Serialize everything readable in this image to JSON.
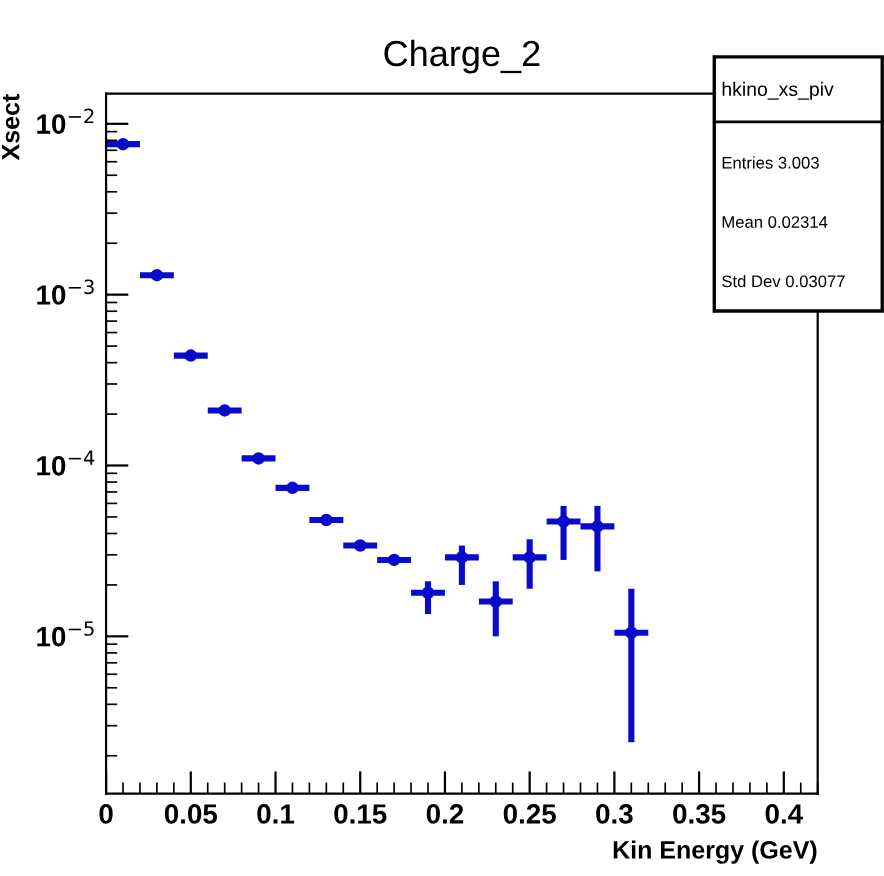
{
  "chart_data": {
    "type": "scatter",
    "title": "Charge_2",
    "xlabel": "Kin Energy (GeV)",
    "ylabel": "Xsect",
    "annotations": [
      "hkino_xs_piv",
      "Entries 3.003",
      "Mean 0.02314",
      "Std Dev 0.03077"
    ],
    "x": [
      0.01,
      0.03,
      0.05,
      0.07,
      0.09,
      0.11,
      0.13,
      0.15,
      0.17,
      0.19,
      0.21,
      0.23,
      0.25,
      0.27,
      0.29,
      0.31
    ],
    "series": [
      {
        "color": "#0a0acc",
        "values": [
          0.0076,
          0.0013,
          0.00044,
          0.00021,
          0.00011,
          7.4e-05,
          4.8e-05,
          3.4e-05,
          2.8e-05,
          1.8e-05,
          2.9e-05,
          1.6e-05,
          2.9e-05,
          4.7e-05,
          4.4e-05,
          1.05e-05
        ],
        "errors": [
          null,
          null,
          null,
          null,
          null,
          null,
          null,
          null,
          null,
          [
            1.35e-05,
            2.1e-05
          ],
          [
            2e-05,
            3.4e-05
          ],
          [
            1e-05,
            2.1e-05
          ],
          [
            1.9e-05,
            3.7e-05
          ],
          [
            2.8e-05,
            5.8e-05
          ],
          [
            2.4e-05,
            5.8e-05
          ],
          [
            2.4e-06,
            1.9e-05
          ]
        ],
        "xerrors": [
          0.01,
          0.01,
          0.01,
          0.01,
          0.01,
          0.01,
          0.01,
          0.01,
          0.01,
          0.01,
          0.01,
          0.01,
          0.01,
          0.01,
          0.01,
          0.01
        ]
      }
    ],
    "marker": "circle",
    "log": "y",
    "grid": false,
    "legend": false,
    "xlim": [
      0,
      0.42
    ],
    "ylim": [
      1.2e-06,
      0.015
    ],
    "xticks": [
      0,
      0.05,
      0.1,
      0.15,
      0.2,
      0.25,
      0.3,
      0.35,
      0.4
    ],
    "yticks": [
      {
        "value": 1e-05,
        "label": "10$^{−5}$"
      },
      {
        "value": 0.0001,
        "label": "10$^{−4}$"
      },
      {
        "value": 0.001,
        "label": "10$^{−3}$"
      },
      {
        "value": 0.01,
        "label": "10$^{−2}$"
      }
    ]
  }
}
